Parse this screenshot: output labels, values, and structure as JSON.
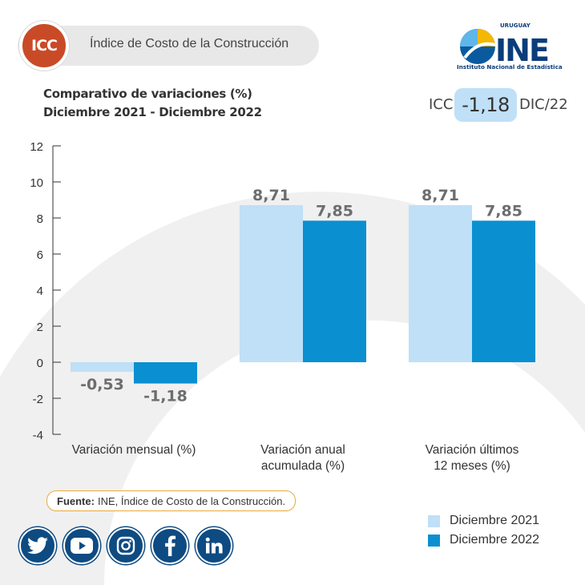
{
  "header": {
    "badge": "ICC",
    "title": "Índice de Costo de la Construcción"
  },
  "logo": {
    "country": "URUGUAY",
    "name": "INE",
    "subtitle": "Instituto Nacional de Estadística"
  },
  "subtitle": {
    "line1": "Comparativo de variaciones (%)",
    "line2": "Diciembre 2021 - Diciembre 2022"
  },
  "indicator": {
    "label": "ICC",
    "value": "-1,18",
    "period": "DIC/22"
  },
  "colors": {
    "series_2021": "#bfe0f7",
    "series_2022": "#0a8fd1",
    "badge": "#c94a26",
    "source_border": "#e8a940",
    "social": "#0d4b82"
  },
  "chart_data": {
    "type": "bar",
    "categories": [
      "Variación mensual (%)",
      "Variación anual acumulada (%)",
      "Variación últimos 12 meses (%)"
    ],
    "category_lines": [
      [
        "Variación mensual (%)"
      ],
      [
        "Variación anual",
        "acumulada (%)"
      ],
      [
        "Variación últimos",
        "12 meses (%)"
      ]
    ],
    "series": [
      {
        "name": "Diciembre 2021",
        "values": [
          -0.53,
          8.71,
          8.71
        ],
        "labels": [
          "-0,53",
          "8,71",
          "8,71"
        ]
      },
      {
        "name": "Diciembre 2022",
        "values": [
          -1.18,
          7.85,
          7.85
        ],
        "labels": [
          "-1,18",
          "7,85",
          "7,85"
        ]
      }
    ],
    "ylim": [
      -4,
      12
    ],
    "yticks": [
      12,
      10,
      8,
      6,
      4,
      2,
      0,
      -2,
      -4
    ],
    "ytick_labels": [
      "12",
      "10",
      "8",
      "6",
      "4",
      "2",
      "0",
      "-2",
      "-4"
    ],
    "grid": false,
    "legend": "bottom-right"
  },
  "source": {
    "label": "Fuente:",
    "text": "INE, Índice de Costo de la Construcción."
  },
  "social": [
    {
      "name": "twitter-icon"
    },
    {
      "name": "youtube-icon"
    },
    {
      "name": "instagram-icon"
    },
    {
      "name": "facebook-icon"
    },
    {
      "name": "linkedin-icon"
    }
  ]
}
